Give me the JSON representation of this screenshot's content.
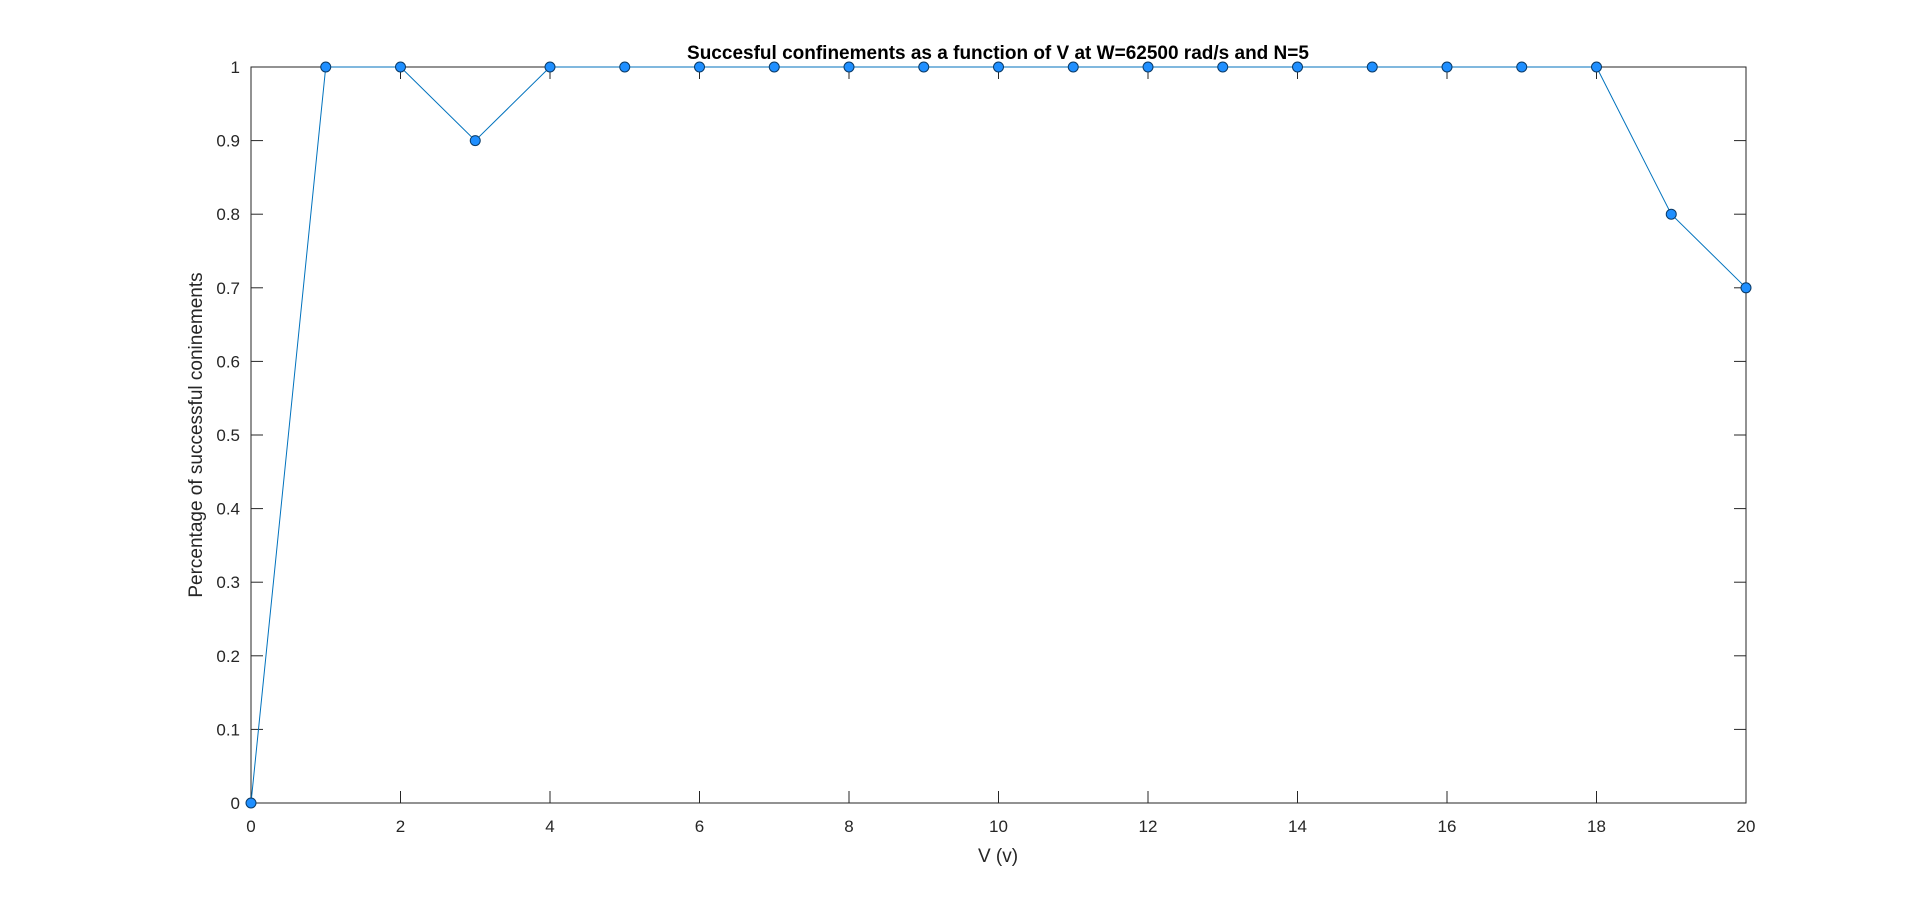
{
  "chart_data": {
    "type": "line",
    "title": "Succesful confinements as a function of V at W=62500 rad/s and N=5",
    "xlabel": "V (v)",
    "ylabel": "Percentage of successful coninements",
    "xlim": [
      0,
      20
    ],
    "ylim": [
      0,
      1
    ],
    "xticks": [
      "0",
      "2",
      "4",
      "6",
      "8",
      "10",
      "12",
      "14",
      "16",
      "18",
      "20"
    ],
    "yticks": [
      "0",
      "0.1",
      "0.2",
      "0.3",
      "0.4",
      "0.5",
      "0.6",
      "0.7",
      "0.8",
      "0.9",
      "1"
    ],
    "grid": false,
    "legend": "none",
    "series": [
      {
        "x": [
          0,
          1,
          2,
          3,
          4,
          5,
          6,
          7,
          8,
          9,
          10,
          11,
          12,
          13,
          14,
          15,
          16,
          17,
          18,
          19,
          20
        ],
        "y": [
          0,
          1,
          1,
          0.9,
          1,
          1,
          1,
          1,
          1,
          1,
          1,
          1,
          1,
          1,
          1,
          1,
          1,
          1,
          1,
          0.8,
          0.7
        ],
        "line_color": "#0072BD",
        "marker": "circle",
        "marker_fill": "#1F8FFF",
        "marker_edge": "#0A3A66"
      }
    ]
  }
}
